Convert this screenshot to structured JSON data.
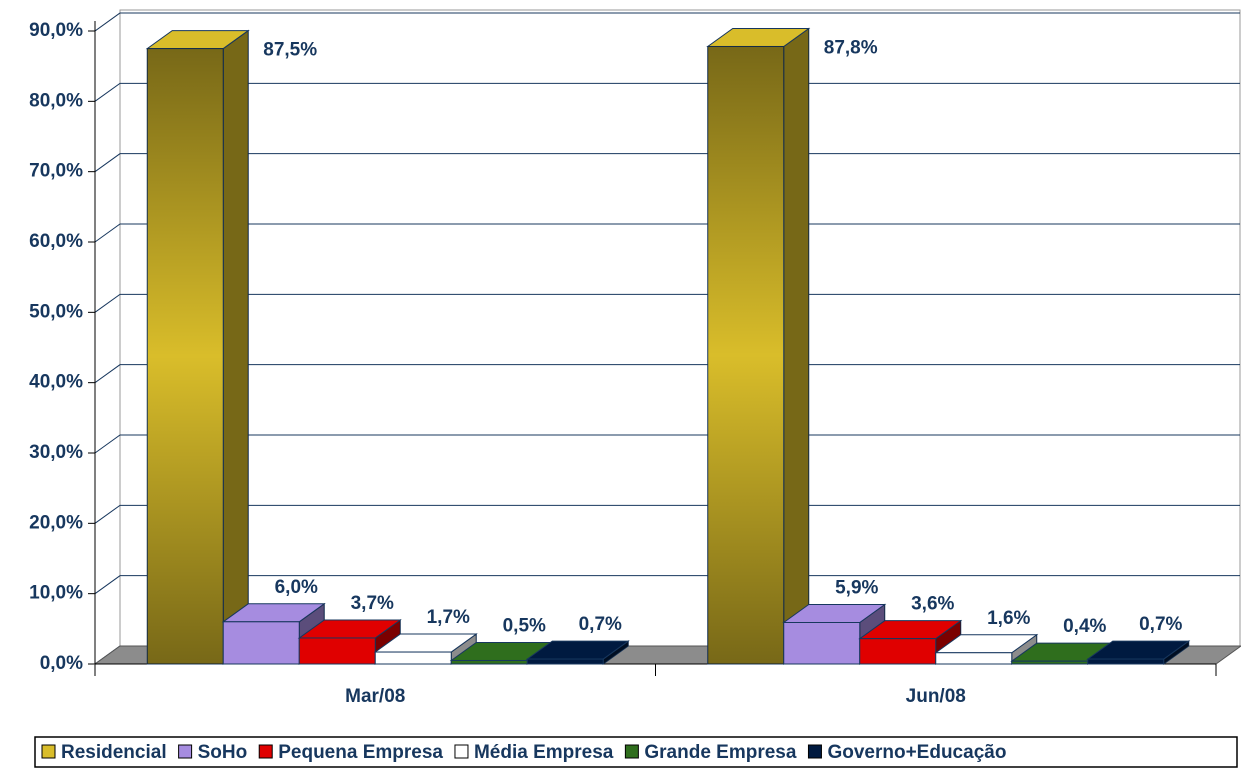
{
  "chart_data": {
    "type": "bar3d",
    "categories": [
      "Mar/08",
      "Jun/08"
    ],
    "series": [
      {
        "name": "Residencial",
        "color": "#d9bd2a",
        "values": [
          87.5,
          87.8
        ],
        "value_labels": [
          "87,5%",
          "87,8%"
        ]
      },
      {
        "name": "SoHo",
        "color": "#a68ce0",
        "values": [
          6.0,
          5.9
        ],
        "value_labels": [
          "6,0%",
          "5,9%"
        ]
      },
      {
        "name": "Pequena Empresa",
        "color": "#e00000",
        "values": [
          3.7,
          3.6
        ],
        "value_labels": [
          "3,7%",
          "3,6%"
        ]
      },
      {
        "name": "Média Empresa",
        "color": "#ffffff",
        "values": [
          1.7,
          1.6
        ],
        "value_labels": [
          "1,7%",
          "1,6%"
        ]
      },
      {
        "name": "Grande Empresa",
        "color": "#2f6e1d",
        "values": [
          0.5,
          0.4
        ],
        "value_labels": [
          "0,5%",
          "0,4%"
        ]
      },
      {
        "name": "Governo+Educação",
        "color": "#001a40",
        "values": [
          0.7,
          0.7
        ],
        "value_labels": [
          "0,7%",
          "0,7%"
        ]
      }
    ],
    "ylim": [
      0,
      90
    ],
    "yticks": [
      {
        "value": 0,
        "label": "0,0%"
      },
      {
        "value": 10,
        "label": "10,0%"
      },
      {
        "value": 20,
        "label": "20,0%"
      },
      {
        "value": 30,
        "label": "30,0%"
      },
      {
        "value": 40,
        "label": "40,0%"
      },
      {
        "value": 50,
        "label": "50,0%"
      },
      {
        "value": 60,
        "label": "60,0%"
      },
      {
        "value": 70,
        "label": "70,0%"
      },
      {
        "value": 80,
        "label": "80,0%"
      },
      {
        "value": 90,
        "label": "90,0%"
      }
    ],
    "grid": true,
    "legend": "bottom"
  }
}
